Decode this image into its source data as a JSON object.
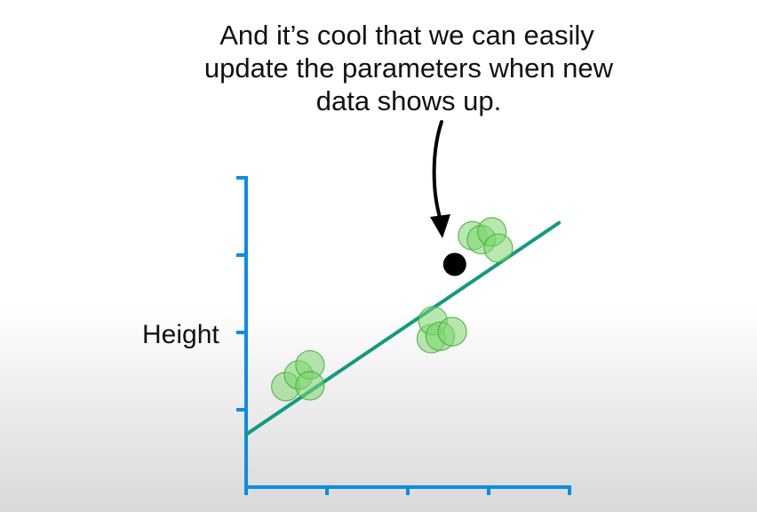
{
  "caption": {
    "lines": [
      "And it’s cool that we can easily",
      "update the parameters when new",
      "data shows up."
    ]
  },
  "chart_data": {
    "type": "scatter",
    "title": "",
    "xlabel": "",
    "ylabel": "Height",
    "xlim": [
      0,
      4
    ],
    "ylim": [
      0,
      4
    ],
    "x_ticks": [
      0,
      1,
      2,
      3,
      4
    ],
    "y_ticks": [
      1,
      2,
      3,
      4
    ],
    "grid": false,
    "series": [
      {
        "kind": "points",
        "color": "#5cc94a",
        "points": [
          {
            "x": 0.49,
            "y": 1.3
          },
          {
            "x": 0.65,
            "y": 1.45
          },
          {
            "x": 0.79,
            "y": 1.58
          },
          {
            "x": 0.79,
            "y": 1.31
          },
          {
            "x": 2.29,
            "y": 1.92
          },
          {
            "x": 2.31,
            "y": 2.15
          },
          {
            "x": 2.4,
            "y": 1.95
          },
          {
            "x": 2.55,
            "y": 2.01
          },
          {
            "x": 2.8,
            "y": 3.25
          },
          {
            "x": 2.91,
            "y": 3.2
          },
          {
            "x": 3.04,
            "y": 3.3
          },
          {
            "x": 3.12,
            "y": 3.09
          }
        ]
      },
      {
        "kind": "new-point",
        "color": "#000000",
        "points": [
          {
            "x": 2.58,
            "y": 2.88
          }
        ]
      },
      {
        "kind": "fit-line",
        "color": "#139a80",
        "intercept": 0.68,
        "slope": 0.7075,
        "x_range": [
          0,
          3.87
        ]
      }
    ]
  },
  "colors": {
    "axis": "#0a8de3",
    "fit_line": "#139a80",
    "point_fill": "#7ed66e",
    "point_stroke": "#3cae34",
    "new_point": "#000000",
    "arrow": "#000000"
  }
}
